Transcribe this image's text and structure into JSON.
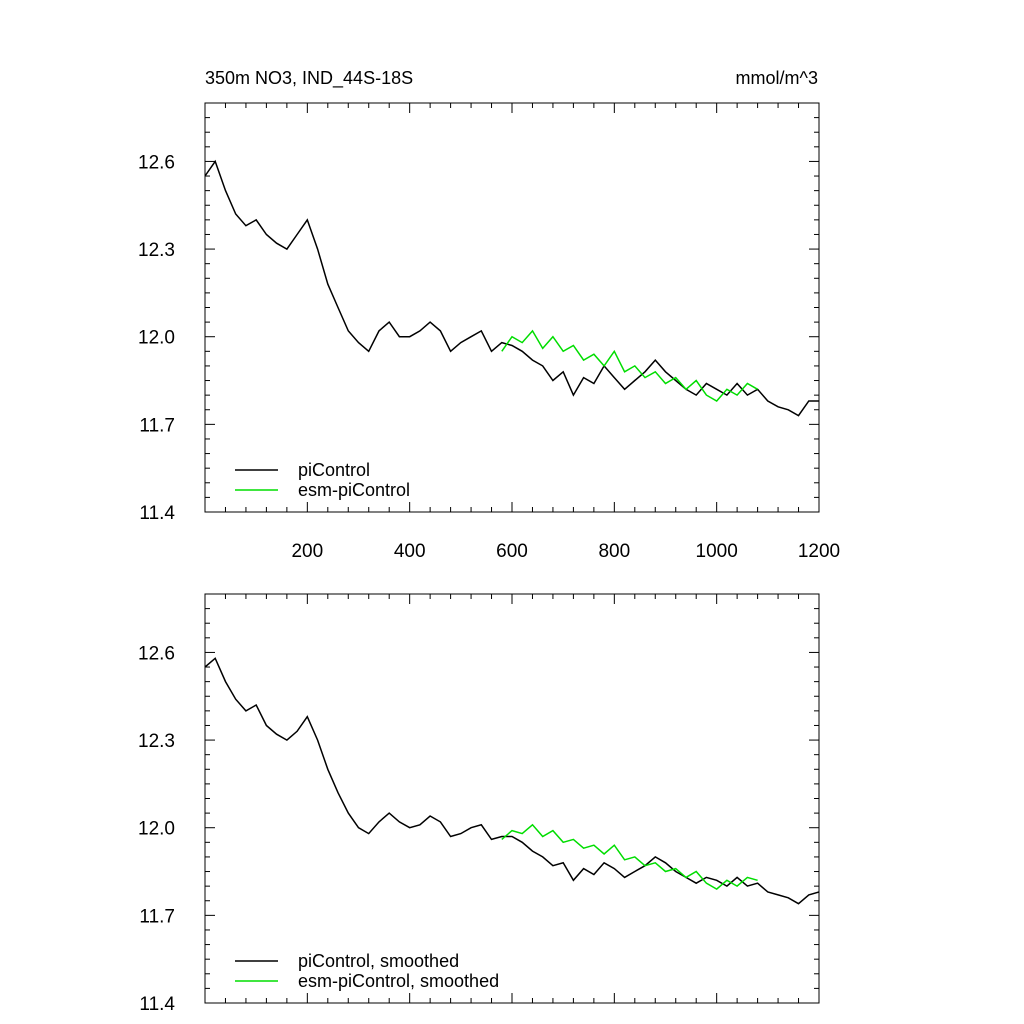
{
  "header": {
    "title": "350m NO3, IND_44S-18S",
    "units": "mmol/m^3"
  },
  "colors": {
    "piControl": "#000000",
    "esm_piControl": "#00dd00",
    "axis": "#000000",
    "background": "#ffffff"
  },
  "chart_data": [
    {
      "type": "line",
      "title": "350m NO3, IND_44S-18S",
      "units": "mmol/m^3",
      "xlim": [
        0,
        1200
      ],
      "ylim": [
        11.4,
        12.8
      ],
      "xticks": [
        200,
        400,
        600,
        800,
        1000,
        1200
      ],
      "xtick_labels": [
        "200",
        "400",
        "600",
        "800",
        "1000",
        "1200"
      ],
      "yticks": [
        11.4,
        11.7,
        12.0,
        12.3,
        12.6
      ],
      "ytick_labels": [
        "11.4",
        "11.7",
        "12.0",
        "12.3",
        "12.6"
      ],
      "legend_position": "bottom-left",
      "grid": false,
      "series": [
        {
          "name": "piControl",
          "color": "#000000",
          "x": [
            0,
            20,
            40,
            60,
            80,
            100,
            120,
            140,
            160,
            180,
            200,
            220,
            240,
            260,
            280,
            300,
            320,
            340,
            360,
            380,
            400,
            420,
            440,
            460,
            480,
            500,
            520,
            540,
            560,
            580,
            600,
            620,
            640,
            660,
            680,
            700,
            720,
            740,
            760,
            780,
            800,
            820,
            840,
            860,
            880,
            900,
            920,
            940,
            960,
            980,
            1000,
            1020,
            1040,
            1060,
            1080,
            1100,
            1120,
            1140,
            1160,
            1180,
            1200
          ],
          "values": [
            12.55,
            12.6,
            12.5,
            12.42,
            12.38,
            12.4,
            12.35,
            12.32,
            12.3,
            12.35,
            12.4,
            12.3,
            12.18,
            12.1,
            12.02,
            11.98,
            11.95,
            12.02,
            12.05,
            12.0,
            12.0,
            12.02,
            12.05,
            12.02,
            11.95,
            11.98,
            12.0,
            12.02,
            11.95,
            11.98,
            11.97,
            11.95,
            11.92,
            11.9,
            11.85,
            11.88,
            11.8,
            11.86,
            11.84,
            11.9,
            11.86,
            11.82,
            11.85,
            11.88,
            11.92,
            11.88,
            11.85,
            11.82,
            11.8,
            11.84,
            11.82,
            11.8,
            11.84,
            11.8,
            11.82,
            11.78,
            11.76,
            11.75,
            11.73,
            11.78,
            11.78
          ]
        },
        {
          "name": "esm-piControl",
          "color": "#00dd00",
          "x": [
            580,
            600,
            620,
            640,
            660,
            680,
            700,
            720,
            740,
            760,
            780,
            800,
            820,
            840,
            860,
            880,
            900,
            920,
            940,
            960,
            980,
            1000,
            1020,
            1040,
            1060,
            1080
          ],
          "values": [
            11.95,
            12.0,
            11.98,
            12.02,
            11.96,
            12.0,
            11.95,
            11.97,
            11.92,
            11.94,
            11.9,
            11.95,
            11.88,
            11.9,
            11.86,
            11.88,
            11.84,
            11.86,
            11.82,
            11.85,
            11.8,
            11.78,
            11.82,
            11.8,
            11.84,
            11.82
          ]
        }
      ]
    },
    {
      "type": "line",
      "xlim": [
        0,
        1200
      ],
      "ylim": [
        11.4,
        12.8
      ],
      "xticks": [
        200,
        400,
        600,
        800,
        1000,
        1200
      ],
      "yticks": [
        11.4,
        11.7,
        12.0,
        12.3,
        12.6
      ],
      "ytick_labels": [
        "11.4",
        "11.7",
        "12.0",
        "12.3",
        "12.6"
      ],
      "legend_position": "bottom-left",
      "grid": false,
      "series": [
        {
          "name": "piControl, smoothed",
          "color": "#000000",
          "x": [
            0,
            20,
            40,
            60,
            80,
            100,
            120,
            140,
            160,
            180,
            200,
            220,
            240,
            260,
            280,
            300,
            320,
            340,
            360,
            380,
            400,
            420,
            440,
            460,
            480,
            500,
            520,
            540,
            560,
            580,
            600,
            620,
            640,
            660,
            680,
            700,
            720,
            740,
            760,
            780,
            800,
            820,
            840,
            860,
            880,
            900,
            920,
            940,
            960,
            980,
            1000,
            1020,
            1040,
            1060,
            1080,
            1100,
            1120,
            1140,
            1160,
            1180,
            1200
          ],
          "values": [
            12.55,
            12.58,
            12.5,
            12.44,
            12.4,
            12.42,
            12.35,
            12.32,
            12.3,
            12.33,
            12.38,
            12.3,
            12.2,
            12.12,
            12.05,
            12.0,
            11.98,
            12.02,
            12.05,
            12.02,
            12.0,
            12.01,
            12.04,
            12.02,
            11.97,
            11.98,
            12.0,
            12.01,
            11.96,
            11.97,
            11.97,
            11.95,
            11.92,
            11.9,
            11.87,
            11.88,
            11.82,
            11.86,
            11.84,
            11.88,
            11.86,
            11.83,
            11.85,
            11.87,
            11.9,
            11.88,
            11.85,
            11.83,
            11.81,
            11.83,
            11.82,
            11.8,
            11.83,
            11.8,
            11.81,
            11.78,
            11.77,
            11.76,
            11.74,
            11.77,
            11.78
          ]
        },
        {
          "name": "esm-piControl, smoothed",
          "color": "#00dd00",
          "x": [
            580,
            600,
            620,
            640,
            660,
            680,
            700,
            720,
            740,
            760,
            780,
            800,
            820,
            840,
            860,
            880,
            900,
            920,
            940,
            960,
            980,
            1000,
            1020,
            1040,
            1060,
            1080
          ],
          "values": [
            11.96,
            11.99,
            11.98,
            12.01,
            11.97,
            11.99,
            11.95,
            11.96,
            11.93,
            11.94,
            11.91,
            11.94,
            11.89,
            11.9,
            11.87,
            11.88,
            11.85,
            11.86,
            11.83,
            11.85,
            11.81,
            11.79,
            11.82,
            11.8,
            11.83,
            11.82
          ]
        }
      ]
    }
  ]
}
